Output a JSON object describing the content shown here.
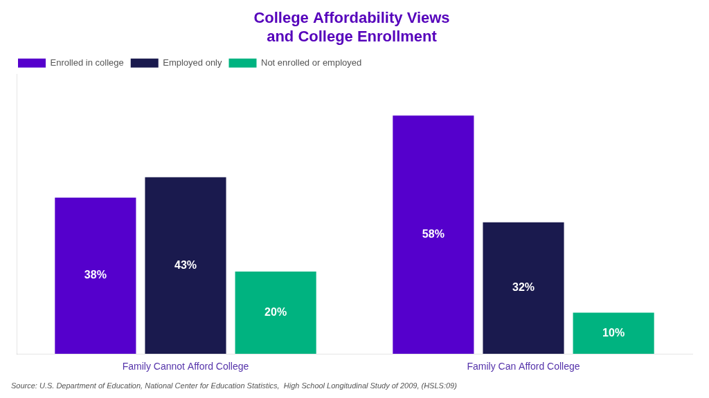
{
  "chart_data": {
    "type": "bar",
    "title": "College Affordability Views\nand College Enrollment",
    "categories": [
      "Family Cannot Afford College",
      "Family Can Afford College"
    ],
    "series": [
      {
        "name": "Enrolled in college",
        "color": "#5500cc",
        "values": [
          38,
          58
        ],
        "value_labels": [
          "38%",
          "58%"
        ]
      },
      {
        "name": "Employed only",
        "color": "#1a1a4e",
        "values": [
          43,
          32
        ],
        "value_labels": [
          "43%",
          "32%"
        ]
      },
      {
        "name": "Not enrolled or employed",
        "color": "#00b380",
        "values": [
          20,
          10
        ],
        "value_labels": [
          "20%",
          "10%"
        ]
      }
    ],
    "ylim": [
      0,
      68
    ],
    "yticks": [],
    "tick_labels": "x",
    "grid": false,
    "legend": "upper left",
    "data_labels": true,
    "annotations": [
      "Source: U.S. Department of Education, National Center for Education Statistics,  High School Longitudinal Study of 2009, (HSLS:09)"
    ]
  }
}
